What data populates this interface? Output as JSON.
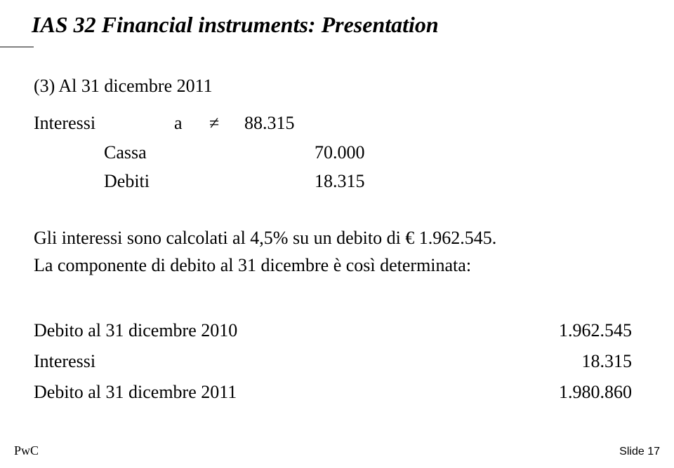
{
  "title": "IAS 32 Financial instruments: Presentation",
  "section_label": "(3) Al 31 dicembre 2011",
  "ledger": {
    "rows": [
      {
        "account": "Interessi",
        "op": "a",
        "neq": "≠",
        "amount": "88.315",
        "indent": false
      },
      {
        "account": "Cassa",
        "op": "",
        "neq": "",
        "amount": "70.000",
        "indent": true
      },
      {
        "account": "Debiti",
        "op": "",
        "neq": "",
        "amount": "18.315",
        "indent": true
      }
    ]
  },
  "note_line1": "Gli interessi sono calcolati al 4,5% su un debito di € 1.962.545.",
  "note_line2": "La componente di debito al 31 dicembre è così determinata:",
  "summary": {
    "rows": [
      {
        "label": "Debito al 31 dicembre 2010",
        "value": "1.962.545"
      },
      {
        "label": "Interessi",
        "value": "18.315"
      },
      {
        "label": "Debito al 31 dicembre 2011",
        "value": "1.980.860"
      }
    ]
  },
  "footer": {
    "left": "PwC",
    "right": "Slide 17"
  }
}
